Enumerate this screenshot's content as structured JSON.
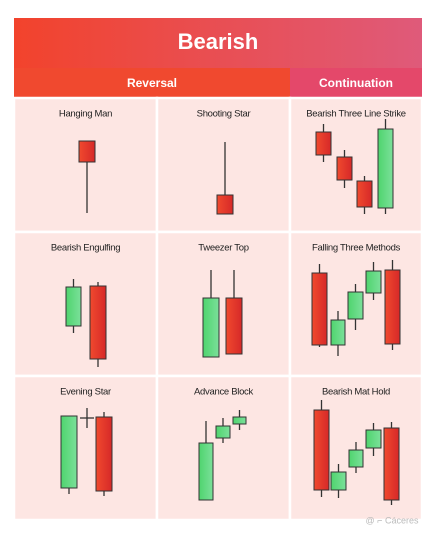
{
  "title": "Bearish",
  "groups": [
    "Reversal",
    "Continuation"
  ],
  "patterns": [
    "Hanging Man",
    "Shooting Star",
    "Bearish Three Line Strike",
    "Bearish Engulfing",
    "Tweezer Top",
    "Falling Three Methods",
    "Evening Star",
    "Advance Block",
    "Bearish Mat Hold"
  ],
  "watermark": "@ ⌐ Cáceres"
}
